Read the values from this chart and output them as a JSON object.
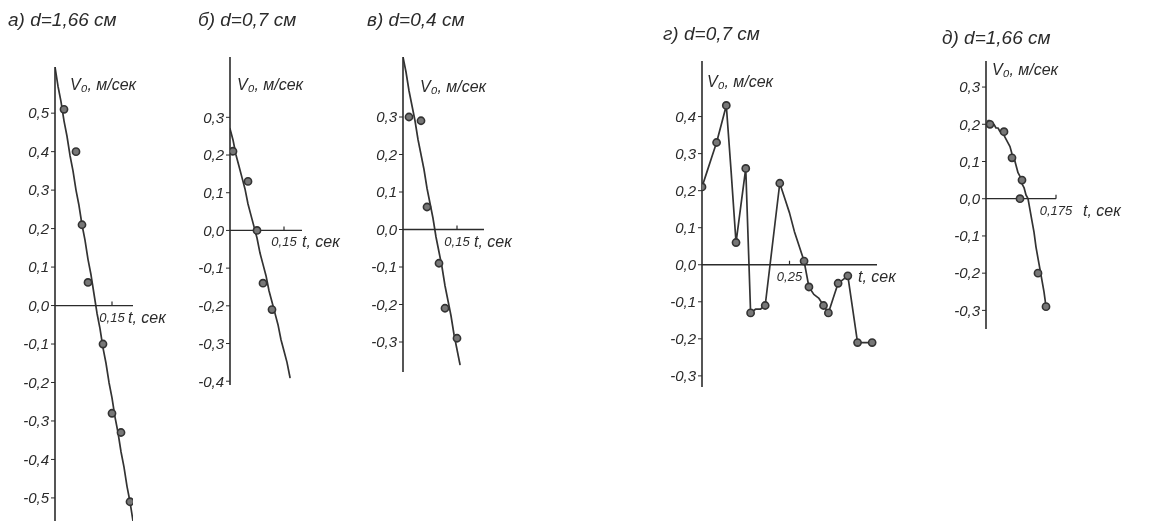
{
  "chart_data": [
    {
      "type": "scatter",
      "title": "а) d=1,66 см",
      "xlabel": "t, сек",
      "ylabel": "V₀, м/сек",
      "categories": [
        null,
        null,
        null,
        null,
        null,
        null,
        null,
        null,
        null,
        null,
        null,
        null,
        null,
        null,
        null,
        null,
        null,
        null,
        null,
        "0,15",
        null,
        null,
        null,
        null,
        null,
        null,
        null
      ],
      "ylim": [
        -0.56,
        0.62
      ],
      "yticks": [
        {
          "value": 0.5,
          "label": "0,5"
        },
        {
          "value": 0.4,
          "label": "0,4"
        },
        {
          "value": 0.3,
          "label": "0,3"
        },
        {
          "value": 0.2,
          "label": "0,2"
        },
        {
          "value": 0.1,
          "label": "0,1"
        },
        {
          "value": 0,
          "label": "0,0"
        },
        {
          "value": -0.1,
          "label": "-0,1"
        },
        {
          "value": -0.2,
          "label": "-0,2"
        },
        {
          "value": -0.3,
          "label": "-0,3"
        },
        {
          "value": -0.4,
          "label": "-0,4"
        },
        {
          "value": -0.5,
          "label": "-0,5"
        }
      ],
      "marker": "circle",
      "series": [
        {
          "color": "#333333",
          "values": [
            null,
            null,
            null,
            0.51,
            null,
            null,
            null,
            0.4,
            null,
            0.21,
            null,
            0.06,
            null,
            null,
            null,
            null,
            -0.1,
            null,
            null,
            -0.28,
            null,
            null,
            -0.33,
            null,
            null,
            -0.51,
            null
          ]
        },
        {
          "type": "line",
          "color": "#333333",
          "marker": "none",
          "values": [
            0.62,
            0.57,
            0.53,
            0.48,
            0.44,
            0.39,
            0.35,
            0.3,
            0.26,
            0.21,
            0.17,
            0.12,
            0.08,
            0.03,
            -0.02,
            -0.06,
            -0.11,
            -0.15,
            -0.2,
            -0.24,
            -0.29,
            -0.33,
            -0.38,
            -0.42,
            -0.47,
            -0.51,
            -0.56
          ]
        }
      ]
    },
    {
      "type": "scatter",
      "title": "б) d=0,7 см",
      "xlabel": "t, сек",
      "ylabel": "V₀, м/сек",
      "categories": [
        null,
        null,
        null,
        null,
        null,
        null,
        null,
        null,
        null,
        null,
        null,
        null,
        null,
        null,
        null,
        null,
        null,
        null,
        "0,15",
        null,
        null,
        null,
        null,
        null,
        null
      ],
      "ylim": [
        -0.41,
        0.46
      ],
      "yticks": [
        {
          "value": 0.3,
          "label": "0,3"
        },
        {
          "value": 0.2,
          "label": "0,2"
        },
        {
          "value": 0.1,
          "label": "0,1"
        },
        {
          "value": 0,
          "label": "0,0"
        },
        {
          "value": -0.1,
          "label": "-0,1"
        },
        {
          "value": -0.2,
          "label": "-0,2"
        },
        {
          "value": -0.3,
          "label": "-0,3"
        },
        {
          "value": -0.4,
          "label": "-0,4"
        }
      ],
      "marker": "circle",
      "series": [
        {
          "color": "#333333",
          "values": [
            null,
            0.21,
            null,
            null,
            null,
            null,
            0.13,
            null,
            null,
            0,
            null,
            -0.14,
            null,
            null,
            -0.21,
            null,
            null,
            null,
            null,
            null,
            null,
            null,
            null,
            null,
            null
          ]
        },
        {
          "type": "line",
          "color": "#333333",
          "marker": "none",
          "values": [
            0.27,
            0.24,
            0.2,
            0.17,
            0.14,
            0.11,
            0.07,
            0.04,
            0.01,
            -0.02,
            -0.06,
            -0.09,
            -0.12,
            -0.16,
            -0.19,
            -0.22,
            -0.25,
            -0.29,
            -0.32,
            -0.35,
            -0.39,
            null,
            null,
            null,
            null
          ]
        }
      ]
    },
    {
      "type": "scatter",
      "title": "в) d=0,4 см",
      "xlabel": "t, сек",
      "ylabel": "V₀, м/сек",
      "categories": [
        null,
        null,
        null,
        null,
        null,
        null,
        null,
        null,
        null,
        null,
        null,
        null,
        null,
        null,
        null,
        null,
        null,
        null,
        "0,15",
        null,
        null,
        null,
        null,
        null,
        null,
        null,
        null,
        null
      ],
      "ylim": [
        -0.38,
        0.46
      ],
      "yticks": [
        {
          "value": 0.3,
          "label": "0,3"
        },
        {
          "value": 0.2,
          "label": "0,2"
        },
        {
          "value": 0.1,
          "label": "0,1"
        },
        {
          "value": 0,
          "label": "0,0"
        },
        {
          "value": -0.1,
          "label": "-0,1"
        },
        {
          "value": -0.2,
          "label": "-0,2"
        },
        {
          "value": -0.3,
          "label": "-0,3"
        }
      ],
      "marker": "circle",
      "series": [
        {
          "color": "#333333",
          "values": [
            null,
            null,
            0.3,
            null,
            null,
            null,
            0.29,
            null,
            0.06,
            null,
            null,
            null,
            -0.09,
            null,
            -0.21,
            null,
            null,
            null,
            -0.29,
            null,
            null,
            null,
            null,
            null,
            null,
            null,
            null,
            null
          ]
        },
        {
          "type": "line",
          "color": "#333333",
          "marker": "none",
          "values": [
            0.46,
            0.42,
            0.37,
            0.33,
            0.29,
            0.24,
            0.2,
            0.16,
            0.11,
            0.07,
            0.03,
            -0.02,
            -0.06,
            -0.1,
            -0.15,
            -0.19,
            -0.23,
            -0.28,
            -0.32,
            -0.36,
            null,
            null,
            null,
            null,
            null,
            null,
            null,
            null
          ]
        }
      ]
    },
    {
      "type": "line",
      "title": "г) d=0,7 см",
      "xlabel": "t, сек",
      "ylabel": "V₀, м/сек",
      "categories": [
        null,
        null,
        null,
        null,
        null,
        null,
        null,
        null,
        null,
        null,
        null,
        null,
        null,
        null,
        null,
        null,
        null,
        null,
        "0,25",
        null,
        null,
        null,
        null,
        null,
        null,
        null,
        null,
        null,
        null,
        null,
        null,
        null,
        null,
        null,
        null,
        null,
        null
      ],
      "ylim": [
        -0.33,
        0.55
      ],
      "yticks": [
        {
          "value": 0.4,
          "label": "0,4"
        },
        {
          "value": 0.3,
          "label": "0,3"
        },
        {
          "value": 0.2,
          "label": "0,2"
        },
        {
          "value": 0.1,
          "label": "0,1"
        },
        {
          "value": 0,
          "label": "0,0"
        },
        {
          "value": -0.1,
          "label": "-0,1"
        },
        {
          "value": -0.2,
          "label": "-0,2"
        },
        {
          "value": -0.3,
          "label": "-0,3"
        }
      ],
      "marker": "circle",
      "series": [
        {
          "color": "#333333",
          "marker": "none",
          "values": [
            0.21,
            0.25,
            0.29,
            0.33,
            0.38,
            0.43,
            0.25,
            0.06,
            0.16,
            0.26,
            -0.13,
            -0.12,
            -0.12,
            -0.11,
            0,
            0.11,
            0.22,
            0.18,
            0.14,
            0.09,
            0.05,
            0.01,
            -0.06,
            -0.08,
            -0.09,
            -0.11,
            -0.13,
            -0.09,
            -0.05,
            -0.04,
            -0.03,
            -0.12,
            -0.21,
            -0.21,
            -0.21,
            -0.21,
            null
          ]
        },
        {
          "type": "scatter",
          "color": "#333333",
          "values": [
            0.21,
            null,
            null,
            0.33,
            null,
            0.43,
            null,
            0.06,
            null,
            0.26,
            -0.13,
            null,
            null,
            -0.11,
            null,
            null,
            0.22,
            null,
            null,
            null,
            null,
            0.01,
            -0.06,
            null,
            null,
            -0.11,
            -0.13,
            null,
            -0.05,
            null,
            -0.03,
            null,
            -0.21,
            null,
            null,
            -0.21,
            null
          ]
        }
      ]
    },
    {
      "type": "scatter",
      "title": "д) d=1,66 см",
      "xlabel": "t, сек",
      "ylabel": "V₀, м/сек",
      "categories": [
        null,
        null,
        null,
        null,
        null,
        null,
        null,
        null,
        null,
        null,
        null,
        null,
        null,
        null,
        null,
        null,
        null,
        null,
        null,
        null,
        null,
        null,
        null,
        null,
        null,
        null,
        null,
        null,
        null,
        null,
        null,
        null,
        null,
        null,
        null,
        "0,175"
      ],
      "ylim": [
        -0.35,
        0.37
      ],
      "yticks": [
        {
          "value": 0.3,
          "label": "0,3"
        },
        {
          "value": 0.2,
          "label": "0,2"
        },
        {
          "value": 0.1,
          "label": "0,1"
        },
        {
          "value": 0,
          "label": "0,0"
        },
        {
          "value": -0.1,
          "label": "-0,1"
        },
        {
          "value": -0.2,
          "label": "-0,2"
        },
        {
          "value": -0.3,
          "label": "-0,3"
        }
      ],
      "marker": "circle",
      "series": [
        {
          "color": "#333333",
          "values": [
            null,
            null,
            0.2,
            null,
            null,
            null,
            null,
            null,
            null,
            0.18,
            null,
            null,
            null,
            0.11,
            null,
            null,
            null,
            0,
            0.05,
            null,
            null,
            null,
            null,
            null,
            null,
            null,
            -0.2,
            null,
            null,
            null,
            -0.29,
            null,
            null,
            null,
            null,
            null
          ]
        },
        {
          "type": "line",
          "color": "#333333",
          "marker": "none",
          "values": [
            null,
            0.21,
            0.21,
            0.2,
            0.2,
            0.19,
            0.19,
            0.18,
            0.18,
            0.17,
            0.16,
            0.15,
            0.14,
            0.12,
            0.11,
            0.09,
            0.07,
            0.06,
            0.04,
            0.03,
            0.01,
            0,
            -0.03,
            -0.06,
            -0.09,
            -0.13,
            -0.16,
            -0.19,
            -0.22,
            -0.25,
            -0.29,
            null,
            null,
            null,
            null,
            null
          ]
        }
      ]
    }
  ]
}
